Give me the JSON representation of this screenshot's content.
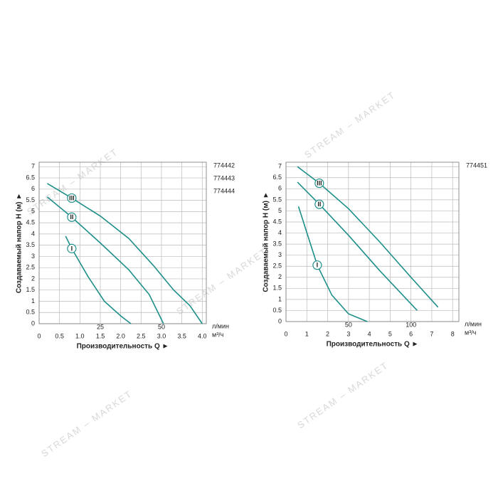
{
  "watermark": "STREAM – MARKET",
  "chart_data": [
    {
      "type": "line",
      "ylabel": "Создаваемый напор H (м) ►",
      "xlabel": "Производительность Q ►",
      "xunit": "м³/ч",
      "x2unit": "л/мин",
      "models": [
        "774442",
        "774443",
        "774444"
      ],
      "xlim": [
        0,
        4.1
      ],
      "ylim": [
        0,
        7.2
      ],
      "x2lim": [
        0,
        68.3
      ],
      "grid": true,
      "color": "#1f8f8a",
      "xticks": [
        0,
        0.5,
        {
          "value": 1,
          "label": "1.0"
        },
        1.5,
        {
          "value": 2,
          "label": "2.0"
        },
        2.5,
        {
          "value": 3,
          "label": "3.0"
        },
        3.5,
        {
          "value": 4,
          "label": "4.0"
        }
      ],
      "x2ticks": [
        25,
        50
      ],
      "yticks": [
        0,
        0.5,
        1,
        1.5,
        2,
        2.5,
        3,
        3.5,
        4,
        4.5,
        5,
        5.5,
        6,
        6.5,
        7
      ],
      "series": [
        {
          "name": "I",
          "x": [
            0.65,
            0.8,
            1.2,
            1.6,
            2.0,
            2.25
          ],
          "values": [
            3.9,
            3.35,
            2.1,
            1.0,
            0.35,
            0
          ]
        },
        {
          "name": "II",
          "x": [
            0.2,
            0.8,
            1.5,
            2.2,
            2.7,
            3.05
          ],
          "values": [
            5.65,
            4.75,
            3.6,
            2.4,
            1.3,
            0
          ]
        },
        {
          "name": "III",
          "x": [
            0.2,
            0.8,
            1.5,
            2.2,
            2.8,
            3.3,
            3.7,
            4.0
          ],
          "values": [
            6.25,
            5.6,
            4.8,
            3.8,
            2.6,
            1.5,
            0.8,
            0
          ]
        }
      ]
    },
    {
      "type": "line",
      "ylabel": "Создаваемый напор H (м) ►",
      "xlabel": "Производительность Q ►",
      "xunit": "м³/ч",
      "x2unit": "л/мин",
      "models": [
        "774451"
      ],
      "xlim": [
        0,
        8.3
      ],
      "ylim": [
        0,
        7.2
      ],
      "x2lim": [
        0,
        138.3
      ],
      "grid": true,
      "color": "#1f8f8a",
      "xticks": [
        0,
        1,
        2,
        3,
        4,
        5,
        6,
        7,
        8
      ],
      "x2ticks": [
        50,
        100
      ],
      "yticks": [
        0,
        0.5,
        1,
        1.5,
        2,
        2.5,
        3,
        3.5,
        4,
        4.5,
        5,
        5.5,
        6,
        6.5,
        7
      ],
      "series": [
        {
          "name": "I",
          "x": [
            0.6,
            1.5,
            2.2,
            3.0,
            3.9
          ],
          "values": [
            5.2,
            2.55,
            1.2,
            0.35,
            0
          ]
        },
        {
          "name": "II",
          "x": [
            0.55,
            1.6,
            3.0,
            4.5,
            6.3
          ],
          "values": [
            6.3,
            5.3,
            3.9,
            2.3,
            0.5
          ]
        },
        {
          "name": "III",
          "x": [
            0.55,
            1.6,
            3.0,
            4.5,
            6.0,
            7.3
          ],
          "values": [
            7.0,
            6.25,
            5.1,
            3.6,
            2.0,
            0.65
          ]
        }
      ]
    }
  ]
}
